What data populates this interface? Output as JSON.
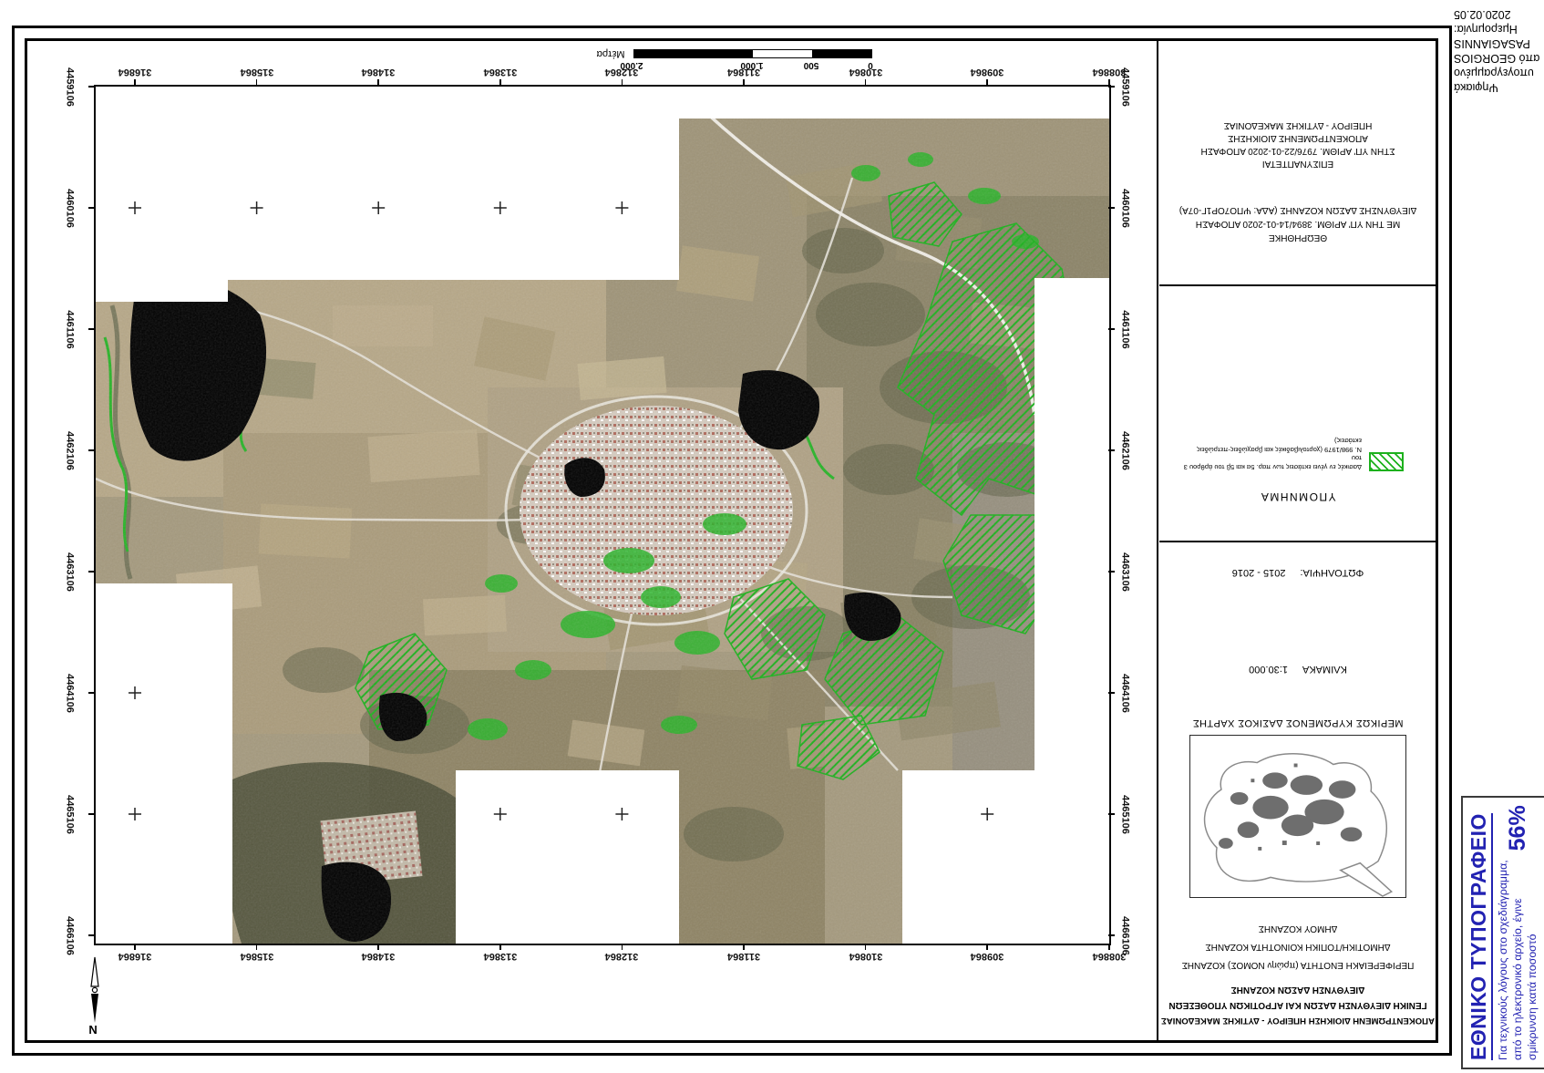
{
  "signature_note": {
    "lines": [
      "Ψηφιακά",
      "υπογεγραμμένο",
      "από GEORGIOS",
      "PASAGIANNIS",
      "Ημερομηνία:",
      "2020.02.05"
    ]
  },
  "scale_bar": {
    "unit": "Μέτρα",
    "tick_labels": [
      "0",
      "500",
      "1.000",
      "2.000"
    ]
  },
  "map_frame": {
    "easting_labels": [
      "316864",
      "315864",
      "314864",
      "313864",
      "312864",
      "311864",
      "310864",
      "309864",
      "308864"
    ],
    "northing_labels": [
      "4459106",
      "4460106",
      "4461106",
      "4462106",
      "4463106",
      "4464106",
      "4465106",
      "4466106"
    ]
  },
  "north": {
    "label": "N"
  },
  "title_block": {
    "agency_lines": [
      "ΑΠΟΚΕΝΤΡΩΜΕΝΗ ΔΙΟΙΚΗΣΗ ΗΠΕΙΡΟΥ - ΔΥΤΙΚΗΣ ΜΑΚΕΔΟΝΙΑΣ",
      "ΓΕΝΙΚΗ ΔΙΕΥΘΥΝΣΗ ΔΑΣΩΝ ΚΑΙ ΑΓΡΟΤΙΚΩΝ ΥΠΟΘΕΣΕΩΝ",
      "ΔΙΕΥΘΥΝΣΗ ΔΑΣΩΝ ΚΟΖΑΝΗΣ"
    ],
    "area_lines": [
      "ΠΕΡΙΦΕΡΕΙΑΚΗ ΕΝΟΤΗΤΑ (πρώην ΝΟΜΟΣ) ΚΟΖΑΝΗΣ",
      "ΔΗΜΟΤΙΚΗ/ΤΟΠΙΚΗ ΚΟΙΝΟΤΗΤΑ ΚΟΖΑΝΗΣ",
      "ΔΗΜΟΥ ΚΟΖΑΝΗΣ"
    ],
    "inset_caption": "ΜΕΡΙΚΩΣ ΚΥΡΩΜΕΝΟΣ ΔΑΣΙΚΟΣ ΧΑΡΤΗΣ",
    "scale": {
      "label": "ΚΛΙΜΑΚΑ",
      "value": "1:30.000"
    },
    "photo": {
      "label": "ΦΩΤΟΛΗΨΙΑ:",
      "value": "2015 - 2016"
    },
    "legend": {
      "title": "ΥΠΟΜΝΗΜΑ",
      "entry_lines": [
        "Δασικές εν γένει εκτάσεις των παρ. 5α και 5β του άρθρου 3 του",
        "Ν. 998/1979 (χορτολιβαδικές και βραχώδεις-πετρώδεις",
        "εκτάσεις)"
      ],
      "swatch": "green-hatched-rectangle"
    },
    "reviewed": {
      "lines": [
        "ΘΕΩΡΗΘΗΚΕ",
        "ΜΕ ΤΗΝ ΥΠ' ΑΡΙΘΜ. 3894/14-01-2020 ΑΠΟΦΑΣΗ",
        "ΔΙΕΥΘΥΝΣΗΣ ΔΑΣΩΝ ΚΟΖΑΝΗΣ (ΑΔΑ: ΨΠΟ7ΟΡ1Γ-07Α)"
      ]
    },
    "attach": {
      "lines": [
        "ΕΠΙΣΥΝΑΠΤΕΤΑΙ",
        "ΣΤΗΝ ΥΠ' ΑΡΙΘΜ. 7976/22-01-2020 ΑΠΟΦΑΣΗ",
        "ΑΠΟΚΕΝΤΡΩΜΕΝΗΣ ΔΙΟΙΚΗΣΗΣ",
        "ΗΠΕΙΡΟΥ - ΔΥΤΙΚΗΣ ΜΑΚΕΔΟΝΙΑΣ"
      ]
    }
  },
  "print_note": {
    "title": "ΕΘΝΙΚΟ ΤΥΠΟΓΡΑΦΕΙΟ",
    "lines": [
      "Για τεχνικούς λόγους στο σχεδιάγραμμα,",
      "από το ηλεκτρονικό αρχείο, έγινε",
      "σμίκρυνση κατά ποσοστό"
    ],
    "percent": "56%"
  },
  "colors": {
    "legend_green": "#1db11d",
    "print_blue": "#2222b2"
  }
}
